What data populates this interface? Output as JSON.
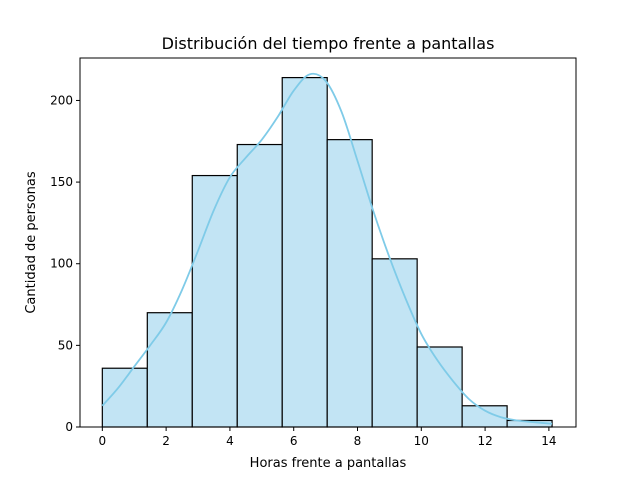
{
  "chart_data": {
    "type": "bar",
    "title": "Distribución del tiempo frente a pantallas",
    "xlabel": "Horas frente a pantallas",
    "ylabel": "Cantidad de personas",
    "xlim": [
      -0.7,
      14.85
    ],
    "ylim": [
      0,
      226
    ],
    "x_ticks": [
      0,
      2,
      4,
      6,
      8,
      10,
      12,
      14
    ],
    "y_ticks": [
      0,
      50,
      100,
      150,
      200
    ],
    "grid": false,
    "bin_edges": [
      0,
      1.41,
      2.82,
      4.23,
      5.64,
      7.05,
      8.46,
      9.87,
      11.28,
      12.69,
      14.1
    ],
    "values": [
      36,
      70,
      154,
      173,
      214,
      176,
      103,
      49,
      13,
      4
    ],
    "bar_fill": "#c2e4f4",
    "bar_stroke": "#000000",
    "kde": {
      "color": "#7fcbe8",
      "x": [
        0,
        0.5,
        1,
        1.5,
        2,
        2.5,
        3,
        3.5,
        4,
        4.5,
        5,
        5.5,
        6,
        6.5,
        7,
        7.5,
        8,
        8.5,
        9,
        9.5,
        10,
        10.5,
        11,
        11.5,
        12,
        12.5,
        13,
        13.5,
        14.1
      ],
      "y": [
        13,
        24,
        37,
        50,
        64,
        84,
        108,
        133,
        153,
        165,
        176,
        190,
        206,
        216,
        212,
        193,
        163,
        132,
        104,
        79,
        57,
        41,
        28,
        17,
        10,
        6,
        4,
        3,
        2
      ]
    }
  }
}
